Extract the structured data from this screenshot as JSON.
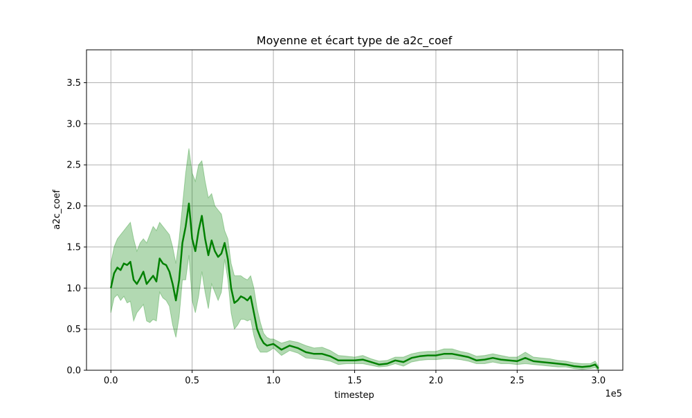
{
  "chart_data": {
    "type": "line",
    "title": "Moyenne et écart type de a2c_coef",
    "xlabel": "timestep",
    "ylabel": "a2c_coef",
    "x_offset_label": "1e5",
    "xlim": [
      -0.15,
      3.15
    ],
    "ylim": [
      0,
      3.9
    ],
    "x_ticks": [
      0.0,
      0.5,
      1.0,
      1.5,
      2.0,
      2.5,
      3.0
    ],
    "x_tick_labels": [
      "0.0",
      "0.5",
      "1.0",
      "1.5",
      "2.0",
      "2.5",
      "3.0"
    ],
    "y_ticks": [
      0.0,
      0.5,
      1.0,
      1.5,
      2.0,
      2.5,
      3.0,
      3.5
    ],
    "y_tick_labels": [
      "0.0",
      "0.5",
      "1.0",
      "1.5",
      "2.0",
      "2.5",
      "3.0",
      "3.5"
    ],
    "grid": true,
    "colors": {
      "mean_line": "#008000",
      "band_fill": "#008000",
      "grid": "#b0b0b0"
    },
    "series": [
      {
        "x": [
          0.0,
          0.02,
          0.04,
          0.06,
          0.08,
          0.1,
          0.12,
          0.14,
          0.16,
          0.18,
          0.2,
          0.22,
          0.24,
          0.26,
          0.28,
          0.3,
          0.32,
          0.34,
          0.36,
          0.38,
          0.4,
          0.42,
          0.44,
          0.46,
          0.48,
          0.5,
          0.52,
          0.54,
          0.56,
          0.58,
          0.6,
          0.62,
          0.64,
          0.66,
          0.68,
          0.7,
          0.72,
          0.74,
          0.76,
          0.78,
          0.8,
          0.82,
          0.84,
          0.86,
          0.88,
          0.9,
          0.92,
          0.94,
          0.96,
          0.98,
          1.0,
          1.05,
          1.1,
          1.15,
          1.2,
          1.25,
          1.3,
          1.35,
          1.4,
          1.45,
          1.5,
          1.55,
          1.6,
          1.65,
          1.7,
          1.75,
          1.8,
          1.85,
          1.9,
          1.95,
          2.0,
          2.05,
          2.1,
          2.15,
          2.2,
          2.25,
          2.3,
          2.35,
          2.4,
          2.45,
          2.5,
          2.55,
          2.6,
          2.65,
          2.7,
          2.75,
          2.8,
          2.85,
          2.9,
          2.95,
          2.98,
          3.0
        ],
        "mean": [
          1.0,
          1.18,
          1.25,
          1.22,
          1.3,
          1.28,
          1.32,
          1.1,
          1.05,
          1.12,
          1.2,
          1.05,
          1.1,
          1.15,
          1.08,
          1.36,
          1.3,
          1.28,
          1.2,
          1.05,
          0.85,
          1.1,
          1.55,
          1.75,
          2.03,
          1.6,
          1.45,
          1.7,
          1.88,
          1.6,
          1.4,
          1.58,
          1.45,
          1.38,
          1.42,
          1.55,
          1.35,
          1.0,
          0.82,
          0.85,
          0.9,
          0.88,
          0.85,
          0.9,
          0.7,
          0.5,
          0.4,
          0.33,
          0.3,
          0.31,
          0.32,
          0.25,
          0.3,
          0.27,
          0.22,
          0.2,
          0.2,
          0.17,
          0.12,
          0.12,
          0.12,
          0.13,
          0.1,
          0.07,
          0.08,
          0.12,
          0.1,
          0.15,
          0.17,
          0.18,
          0.18,
          0.2,
          0.2,
          0.18,
          0.16,
          0.12,
          0.13,
          0.15,
          0.13,
          0.12,
          0.11,
          0.15,
          0.11,
          0.1,
          0.09,
          0.08,
          0.07,
          0.05,
          0.04,
          0.05,
          0.07,
          0.02
        ],
        "upper": [
          1.3,
          1.5,
          1.6,
          1.65,
          1.7,
          1.75,
          1.8,
          1.6,
          1.45,
          1.55,
          1.6,
          1.55,
          1.65,
          1.75,
          1.7,
          1.8,
          1.75,
          1.7,
          1.65,
          1.5,
          1.3,
          1.6,
          2.0,
          2.4,
          2.7,
          2.4,
          2.3,
          2.5,
          2.55,
          2.3,
          2.1,
          2.15,
          2.0,
          1.95,
          1.9,
          1.7,
          1.6,
          1.3,
          1.15,
          1.15,
          1.15,
          1.12,
          1.1,
          1.15,
          1.0,
          0.75,
          0.58,
          0.45,
          0.4,
          0.38,
          0.38,
          0.33,
          0.36,
          0.34,
          0.3,
          0.27,
          0.28,
          0.24,
          0.18,
          0.17,
          0.16,
          0.18,
          0.14,
          0.11,
          0.12,
          0.16,
          0.16,
          0.2,
          0.22,
          0.23,
          0.23,
          0.26,
          0.26,
          0.23,
          0.21,
          0.17,
          0.18,
          0.2,
          0.18,
          0.16,
          0.16,
          0.22,
          0.16,
          0.15,
          0.14,
          0.12,
          0.11,
          0.09,
          0.08,
          0.08,
          0.11,
          0.05
        ],
        "lower": [
          0.7,
          0.88,
          0.92,
          0.85,
          0.9,
          0.82,
          0.84,
          0.6,
          0.7,
          0.75,
          0.8,
          0.6,
          0.58,
          0.62,
          0.6,
          0.95,
          0.88,
          0.85,
          0.78,
          0.55,
          0.4,
          0.65,
          1.1,
          1.1,
          1.4,
          0.85,
          0.7,
          0.9,
          1.2,
          0.95,
          0.75,
          1.05,
          0.95,
          0.85,
          0.95,
          1.35,
          1.1,
          0.7,
          0.5,
          0.55,
          0.62,
          0.62,
          0.6,
          0.62,
          0.42,
          0.28,
          0.22,
          0.22,
          0.22,
          0.24,
          0.27,
          0.18,
          0.24,
          0.21,
          0.15,
          0.14,
          0.13,
          0.11,
          0.07,
          0.08,
          0.08,
          0.08,
          0.06,
          0.04,
          0.05,
          0.08,
          0.05,
          0.1,
          0.12,
          0.13,
          0.13,
          0.14,
          0.14,
          0.13,
          0.11,
          0.08,
          0.08,
          0.1,
          0.08,
          0.08,
          0.07,
          0.08,
          0.07,
          0.06,
          0.05,
          0.04,
          0.04,
          0.02,
          0.01,
          0.02,
          0.03,
          0.0
        ]
      }
    ]
  }
}
